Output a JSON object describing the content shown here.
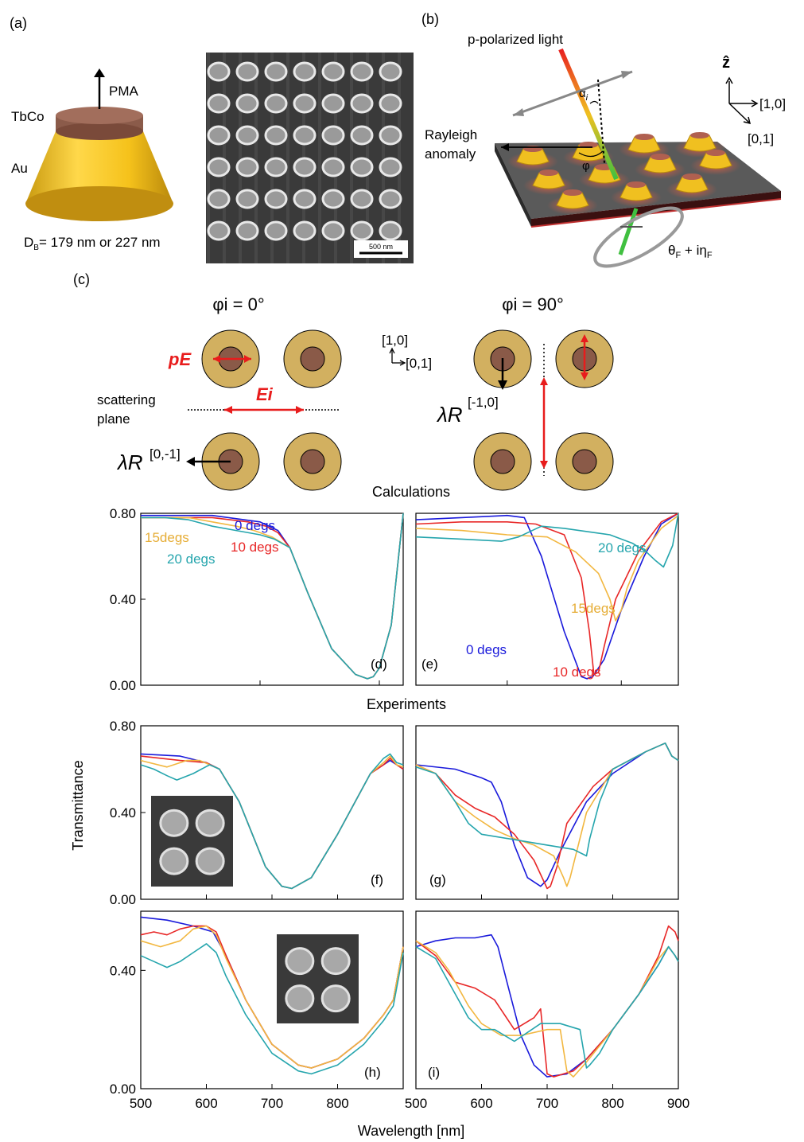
{
  "panel_labels": {
    "a": "(a)",
    "b": "(b)",
    "c": "(c)",
    "d": "(d)",
    "e": "(e)",
    "f": "(f)",
    "g": "(g)",
    "h": "(h)",
    "i": "(i)"
  },
  "panel_a": {
    "pma": "PMA",
    "tbco": "TbCo",
    "au": "Au",
    "diameter": "D",
    "diameter_sub": "B",
    "diameter_value": "= 179 nm or 227 nm",
    "scale_bar": "500 nm"
  },
  "panel_b": {
    "light": "p-polarized light",
    "z_axis": "ẑ",
    "axis_10": "[1,0]",
    "axis_01": "[0,1]",
    "rayleigh_1": "Rayleigh",
    "rayleigh_2": "anomaly",
    "alpha": "α",
    "alpha_sub": "i",
    "phi": "φ",
    "faraday_theta": "θ",
    "faraday_theta_sub": "F",
    "faraday_plus": " + iη",
    "faraday_eta_sub": "F"
  },
  "panel_c": {
    "phi0_label": "φi = 0°",
    "phi90_label": "φi = 90°",
    "pe": "pE",
    "ei": "Ei",
    "scattering_1": "scattering",
    "scattering_2": "plane",
    "lambda": "λR",
    "order_0m1": "[0,-1]",
    "order_m10": "[-1,0]",
    "axis_10": "[1,0]",
    "axis_01": "[0,1]"
  },
  "section_calc": "Calculations",
  "section_exp": "Experiments",
  "y_axis_label": "Transmittance",
  "x_axis_label": "Wavelength [nm]",
  "colors": {
    "deg0": "#1a1adb",
    "deg10": "#e82727",
    "deg15": "#f2b740",
    "deg20": "#25a5ad",
    "gold": "#d2b060",
    "core": "#8a5a48"
  },
  "chart_data": [
    {
      "id": "d",
      "type": "line",
      "xlim": [
        500,
        720
      ],
      "ylim": [
        0,
        0.8
      ],
      "yticks": [
        "0.00",
        "0.40",
        "0.80"
      ],
      "annotations": [
        {
          "text": "0 degs",
          "color": "deg0"
        },
        {
          "text": "10 degs",
          "color": "deg10"
        },
        {
          "text": "15degs",
          "color": "deg15"
        },
        {
          "text": "20 degs",
          "color": "deg20"
        }
      ],
      "series": [
        {
          "color": "deg0",
          "x": [
            500,
            560,
            600,
            615,
            625,
            640,
            660,
            680,
            690,
            695,
            700,
            710,
            720
          ],
          "y": [
            0.79,
            0.79,
            0.76,
            0.72,
            0.64,
            0.43,
            0.17,
            0.05,
            0.03,
            0.04,
            0.08,
            0.28,
            0.8
          ]
        },
        {
          "color": "deg10",
          "x": [
            500,
            560,
            590,
            605,
            615,
            625,
            640,
            660,
            680,
            690,
            695,
            700,
            710,
            720
          ],
          "y": [
            0.78,
            0.78,
            0.76,
            0.74,
            0.71,
            0.64,
            0.43,
            0.17,
            0.05,
            0.03,
            0.04,
            0.08,
            0.28,
            0.8
          ]
        },
        {
          "color": "deg15",
          "x": [
            500,
            540,
            560,
            580,
            595,
            610,
            625,
            640,
            660,
            680,
            690,
            695,
            700,
            710,
            720
          ],
          "y": [
            0.78,
            0.78,
            0.76,
            0.74,
            0.72,
            0.69,
            0.64,
            0.43,
            0.17,
            0.05,
            0.03,
            0.04,
            0.08,
            0.28,
            0.8
          ]
        },
        {
          "color": "deg20",
          "x": [
            500,
            520,
            540,
            560,
            580,
            600,
            612,
            625,
            640,
            660,
            680,
            690,
            695,
            700,
            710,
            720
          ],
          "y": [
            0.78,
            0.78,
            0.77,
            0.74,
            0.72,
            0.7,
            0.68,
            0.64,
            0.43,
            0.17,
            0.05,
            0.03,
            0.04,
            0.08,
            0.28,
            0.8
          ]
        }
      ]
    },
    {
      "id": "e",
      "type": "line",
      "xlim": [
        520,
        750
      ],
      "ylim": [
        0,
        0.8
      ],
      "annotations": [
        {
          "text": "0 degs",
          "color": "deg0"
        },
        {
          "text": "10 degs",
          "color": "deg10"
        },
        {
          "text": "15degs",
          "color": "deg15"
        },
        {
          "text": "20 degs",
          "color": "deg20"
        }
      ],
      "series": [
        {
          "color": "deg0",
          "x": [
            520,
            560,
            600,
            615,
            630,
            650,
            665,
            670,
            675,
            685,
            700,
            720,
            735,
            750
          ],
          "y": [
            0.77,
            0.78,
            0.79,
            0.78,
            0.6,
            0.25,
            0.04,
            0.03,
            0.04,
            0.12,
            0.35,
            0.6,
            0.75,
            0.8
          ]
        },
        {
          "color": "deg10",
          "x": [
            520,
            560,
            600,
            625,
            650,
            665,
            672,
            676,
            680,
            685,
            695,
            715,
            735,
            750
          ],
          "y": [
            0.75,
            0.76,
            0.76,
            0.75,
            0.7,
            0.5,
            0.25,
            0.05,
            0.06,
            0.18,
            0.4,
            0.62,
            0.76,
            0.8
          ]
        },
        {
          "color": "deg15",
          "x": [
            520,
            560,
            600,
            635,
            660,
            680,
            690,
            695,
            700,
            705,
            715,
            735,
            750
          ],
          "y": [
            0.73,
            0.72,
            0.7,
            0.69,
            0.62,
            0.52,
            0.4,
            0.3,
            0.35,
            0.45,
            0.58,
            0.73,
            0.79
          ]
        },
        {
          "color": "deg20",
          "x": [
            520,
            560,
            595,
            610,
            630,
            650,
            690,
            710,
            722,
            730,
            737,
            745,
            750
          ],
          "y": [
            0.69,
            0.68,
            0.67,
            0.69,
            0.74,
            0.73,
            0.7,
            0.66,
            0.62,
            0.58,
            0.55,
            0.65,
            0.8
          ]
        }
      ]
    },
    {
      "id": "f",
      "type": "line",
      "xlim": [
        500,
        900
      ],
      "ylim": [
        0,
        0.8
      ],
      "yticks": [
        "0.00",
        "0.40",
        "0.80"
      ],
      "series": [
        {
          "color": "deg0",
          "x": [
            500,
            560,
            600,
            620,
            650,
            690,
            715,
            730,
            760,
            800,
            850,
            870,
            880,
            890,
            900
          ],
          "y": [
            0.67,
            0.66,
            0.63,
            0.6,
            0.45,
            0.15,
            0.06,
            0.05,
            0.1,
            0.3,
            0.58,
            0.62,
            0.64,
            0.62,
            0.6
          ]
        },
        {
          "color": "deg10",
          "x": [
            500,
            560,
            600,
            620,
            650,
            690,
            715,
            730,
            760,
            800,
            850,
            870,
            880,
            890,
            900
          ],
          "y": [
            0.66,
            0.64,
            0.63,
            0.6,
            0.45,
            0.15,
            0.06,
            0.05,
            0.1,
            0.3,
            0.58,
            0.62,
            0.65,
            0.62,
            0.6
          ]
        },
        {
          "color": "deg15",
          "x": [
            500,
            540,
            570,
            590,
            620,
            650,
            690,
            715,
            730,
            760,
            800,
            850,
            870,
            880,
            890,
            900
          ],
          "y": [
            0.64,
            0.61,
            0.64,
            0.64,
            0.6,
            0.45,
            0.15,
            0.06,
            0.05,
            0.1,
            0.3,
            0.58,
            0.63,
            0.66,
            0.62,
            0.61
          ]
        },
        {
          "color": "deg20",
          "x": [
            500,
            520,
            540,
            555,
            580,
            605,
            620,
            650,
            690,
            715,
            730,
            760,
            800,
            850,
            870,
            880,
            890,
            900
          ],
          "y": [
            0.62,
            0.6,
            0.57,
            0.55,
            0.58,
            0.62,
            0.6,
            0.45,
            0.15,
            0.06,
            0.05,
            0.1,
            0.3,
            0.58,
            0.65,
            0.67,
            0.63,
            0.62
          ]
        }
      ]
    },
    {
      "id": "g",
      "type": "line",
      "xlim": [
        500,
        900
      ],
      "ylim": [
        0,
        0.8
      ],
      "series": [
        {
          "color": "deg0",
          "x": [
            500,
            560,
            600,
            615,
            630,
            650,
            670,
            690,
            700,
            720,
            760,
            800,
            850,
            880,
            890,
            900
          ],
          "y": [
            0.62,
            0.6,
            0.56,
            0.54,
            0.45,
            0.25,
            0.1,
            0.06,
            0.09,
            0.22,
            0.45,
            0.58,
            0.68,
            0.72,
            0.66,
            0.64
          ]
        },
        {
          "color": "deg10",
          "x": [
            500,
            530,
            560,
            590,
            620,
            650,
            680,
            700,
            705,
            715,
            730,
            770,
            800,
            850,
            880,
            890,
            900
          ],
          "y": [
            0.62,
            0.58,
            0.48,
            0.42,
            0.38,
            0.3,
            0.18,
            0.05,
            0.06,
            0.15,
            0.35,
            0.52,
            0.6,
            0.68,
            0.72,
            0.66,
            0.64
          ]
        },
        {
          "color": "deg15",
          "x": [
            500,
            530,
            560,
            590,
            620,
            650,
            680,
            710,
            725,
            730,
            735,
            760,
            800,
            850,
            880,
            890,
            900
          ],
          "y": [
            0.62,
            0.58,
            0.45,
            0.38,
            0.32,
            0.28,
            0.25,
            0.2,
            0.1,
            0.06,
            0.1,
            0.4,
            0.6,
            0.68,
            0.72,
            0.66,
            0.64
          ]
        },
        {
          "color": "deg20",
          "x": [
            500,
            530,
            560,
            580,
            600,
            640,
            700,
            740,
            760,
            765,
            780,
            800,
            850,
            880,
            890,
            900
          ],
          "y": [
            0.61,
            0.58,
            0.45,
            0.35,
            0.3,
            0.28,
            0.25,
            0.23,
            0.2,
            0.28,
            0.45,
            0.6,
            0.68,
            0.72,
            0.66,
            0.64
          ]
        }
      ]
    },
    {
      "id": "h",
      "type": "line",
      "xlim": [
        500,
        900
      ],
      "ylim": [
        0,
        0.6
      ],
      "yticks": [
        "0.00",
        "0.40"
      ],
      "series": [
        {
          "color": "deg0",
          "x": [
            500,
            540,
            580,
            610,
            630,
            660,
            700,
            740,
            760,
            800,
            840,
            870,
            885,
            895,
            900
          ],
          "y": [
            0.58,
            0.57,
            0.55,
            0.53,
            0.45,
            0.3,
            0.15,
            0.08,
            0.07,
            0.1,
            0.17,
            0.25,
            0.3,
            0.42,
            0.48
          ]
        },
        {
          "color": "deg10",
          "x": [
            500,
            520,
            540,
            560,
            580,
            600,
            615,
            630,
            660,
            700,
            740,
            760,
            800,
            840,
            870,
            885,
            895,
            900
          ],
          "y": [
            0.52,
            0.53,
            0.52,
            0.54,
            0.55,
            0.55,
            0.53,
            0.45,
            0.3,
            0.15,
            0.08,
            0.07,
            0.1,
            0.17,
            0.25,
            0.3,
            0.42,
            0.48
          ]
        },
        {
          "color": "deg15",
          "x": [
            500,
            530,
            560,
            580,
            600,
            615,
            630,
            660,
            700,
            740,
            760,
            800,
            840,
            870,
            885,
            895,
            900
          ],
          "y": [
            0.5,
            0.48,
            0.5,
            0.54,
            0.55,
            0.52,
            0.44,
            0.3,
            0.15,
            0.08,
            0.07,
            0.1,
            0.17,
            0.25,
            0.3,
            0.42,
            0.48
          ]
        },
        {
          "color": "deg20",
          "x": [
            500,
            520,
            540,
            560,
            580,
            600,
            615,
            630,
            660,
            700,
            740,
            760,
            800,
            840,
            870,
            885,
            895,
            900
          ],
          "y": [
            0.45,
            0.43,
            0.41,
            0.43,
            0.46,
            0.49,
            0.46,
            0.38,
            0.25,
            0.12,
            0.06,
            0.05,
            0.08,
            0.15,
            0.23,
            0.28,
            0.4,
            0.46
          ]
        }
      ]
    },
    {
      "id": "i",
      "type": "line",
      "xlim": [
        500,
        900
      ],
      "ylim": [
        0,
        0.6
      ],
      "series": [
        {
          "color": "deg0",
          "x": [
            500,
            530,
            560,
            590,
            615,
            625,
            640,
            660,
            680,
            700,
            730,
            760,
            800,
            840,
            870,
            885,
            895,
            900
          ],
          "y": [
            0.48,
            0.5,
            0.51,
            0.51,
            0.52,
            0.48,
            0.35,
            0.18,
            0.08,
            0.04,
            0.05,
            0.1,
            0.2,
            0.32,
            0.42,
            0.48,
            0.45,
            0.43
          ]
        },
        {
          "color": "deg10",
          "x": [
            500,
            530,
            560,
            590,
            620,
            650,
            680,
            690,
            700,
            710,
            740,
            760,
            800,
            840,
            870,
            885,
            895,
            900
          ],
          "y": [
            0.5,
            0.45,
            0.36,
            0.34,
            0.3,
            0.2,
            0.24,
            0.27,
            0.05,
            0.04,
            0.06,
            0.1,
            0.2,
            0.32,
            0.45,
            0.55,
            0.53,
            0.5
          ]
        },
        {
          "color": "deg15",
          "x": [
            500,
            530,
            550,
            580,
            600,
            630,
            660,
            700,
            720,
            730,
            740,
            760,
            800,
            840,
            870,
            885,
            895,
            900
          ],
          "y": [
            0.5,
            0.46,
            0.4,
            0.28,
            0.22,
            0.18,
            0.18,
            0.2,
            0.2,
            0.06,
            0.04,
            0.09,
            0.2,
            0.32,
            0.44,
            0.48,
            0.45,
            0.43
          ]
        },
        {
          "color": "deg20",
          "x": [
            500,
            530,
            560,
            580,
            600,
            620,
            650,
            690,
            720,
            750,
            760,
            765,
            780,
            800,
            840,
            870,
            885,
            895,
            900
          ],
          "y": [
            0.48,
            0.44,
            0.32,
            0.24,
            0.2,
            0.2,
            0.16,
            0.22,
            0.22,
            0.2,
            0.07,
            0.08,
            0.12,
            0.2,
            0.32,
            0.42,
            0.48,
            0.45,
            0.43
          ]
        }
      ]
    }
  ],
  "x_ticks": [
    "500",
    "600",
    "700",
    "800",
    "900"
  ],
  "x_ticks_left": [
    "500",
    "600",
    "700",
    "800"
  ]
}
